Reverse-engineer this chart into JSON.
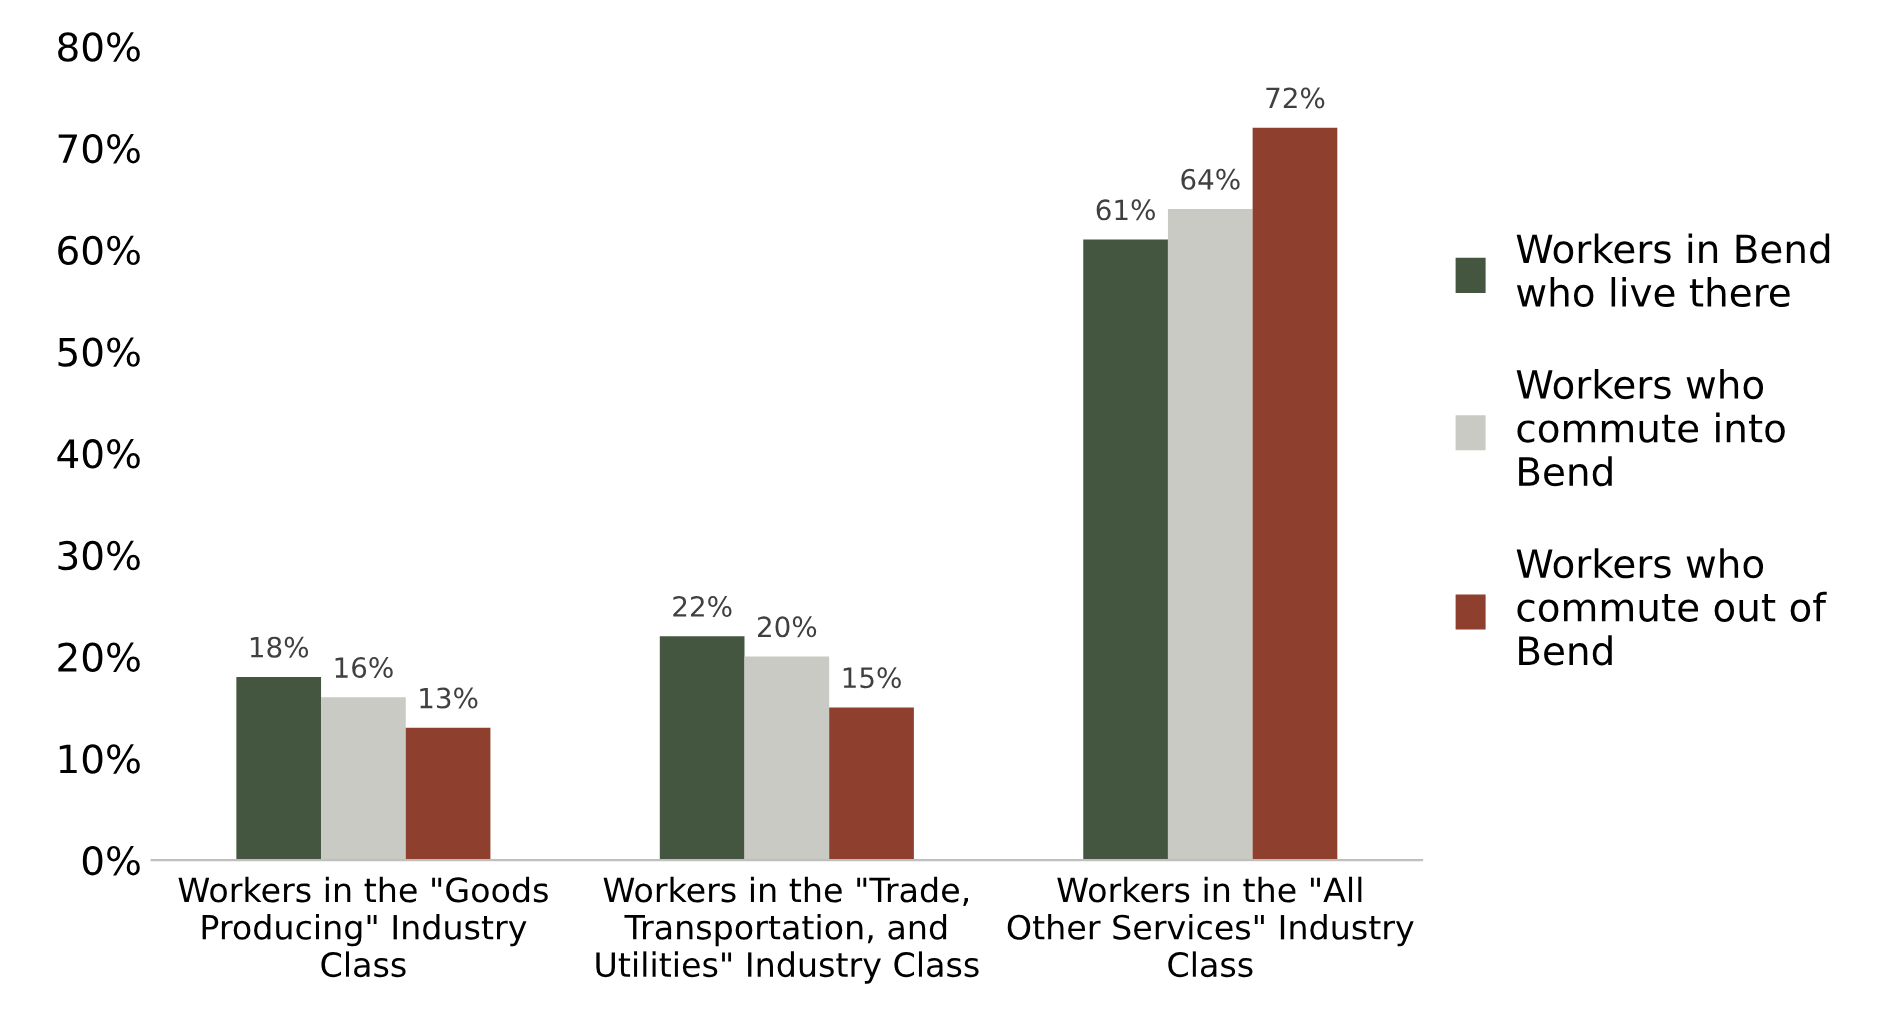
{
  "chart_data": {
    "type": "bar",
    "categories": [
      "Workers in the \"Goods\nProducing\" Industry\nClass",
      "Workers in the \"Trade,\nTransportation, and\nUtilities\" Industry Class",
      "Workers in the \"All\nOther Services\" Industry\nClass"
    ],
    "series": [
      {
        "name": "Workers in Bend\nwho live there",
        "color": "#44563f",
        "values": [
          18,
          22,
          61
        ],
        "value_labels": [
          "18%",
          "22%",
          "61%"
        ]
      },
      {
        "name": "Workers who\ncommute into\nBend",
        "color": "#c8cac3",
        "values": [
          16,
          20,
          64
        ],
        "value_labels": [
          "16%",
          "20%",
          "64%"
        ]
      },
      {
        "name": "Workers who\ncommute out of\nBend",
        "color": "#8f3f2e",
        "values": [
          13,
          15,
          72
        ],
        "value_labels": [
          "13%",
          "15%",
          "72%"
        ]
      }
    ],
    "ylim": [
      0,
      80
    ],
    "yticks": [
      {
        "value": 0,
        "label": "0%"
      },
      {
        "value": 10,
        "label": "10%"
      },
      {
        "value": 20,
        "label": "20%"
      },
      {
        "value": 30,
        "label": "30%"
      },
      {
        "value": 40,
        "label": "40%"
      },
      {
        "value": 50,
        "label": "50%"
      },
      {
        "value": 60,
        "label": "60%"
      },
      {
        "value": 70,
        "label": "70%"
      },
      {
        "value": 80,
        "label": "80%"
      }
    ],
    "legend": "right",
    "grid": false
  }
}
